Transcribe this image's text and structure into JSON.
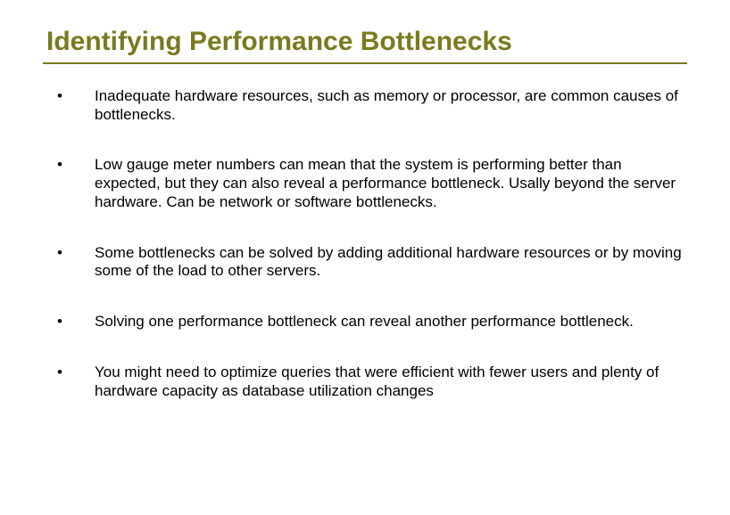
{
  "slide": {
    "title": "Identifying Performance Bottlenecks",
    "title_color": "#7a7a1f",
    "rule_color": "#7a7a1f",
    "background_color": "#ffffff",
    "body_text_color": "#000000",
    "title_fontsize": 30,
    "body_fontsize": 17,
    "bullets": [
      "Inadequate hardware resources, such as memory or processor, are common causes of bottlenecks.",
      "Low gauge meter numbers can mean that the system is performing better than expected, but they can also reveal a performance bottleneck.  Usally beyond the server hardware. Can be network or software bottlenecks.",
      "Some bottlenecks can be solved by adding additional hardware resources or by moving some of the load to other servers.",
      "Solving one performance bottleneck can reveal another performance bottleneck.",
      "You might need to optimize queries that were efficient with fewer users and plenty of hardware capacity as database utilization changes"
    ]
  }
}
